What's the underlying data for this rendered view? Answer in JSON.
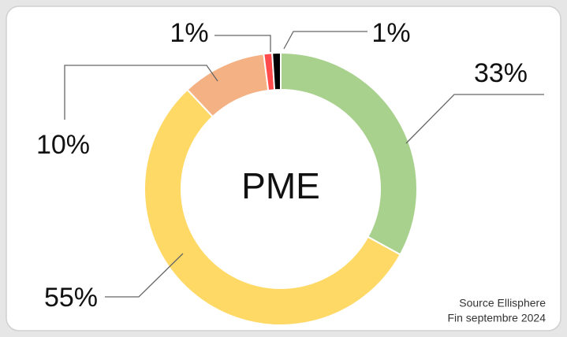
{
  "chart_data": {
    "type": "donut",
    "center_label": "PME",
    "values": [
      33,
      55,
      10,
      1,
      1
    ],
    "value_labels": [
      "33%",
      "55%",
      "10%",
      "1%",
      "1%"
    ],
    "colors": [
      "#a9d18e",
      "#ffd966",
      "#f4b183",
      "#ff4b4b",
      "#000000"
    ],
    "source": [
      "Source Ellisphere",
      "Fin septembre 2024"
    ]
  }
}
